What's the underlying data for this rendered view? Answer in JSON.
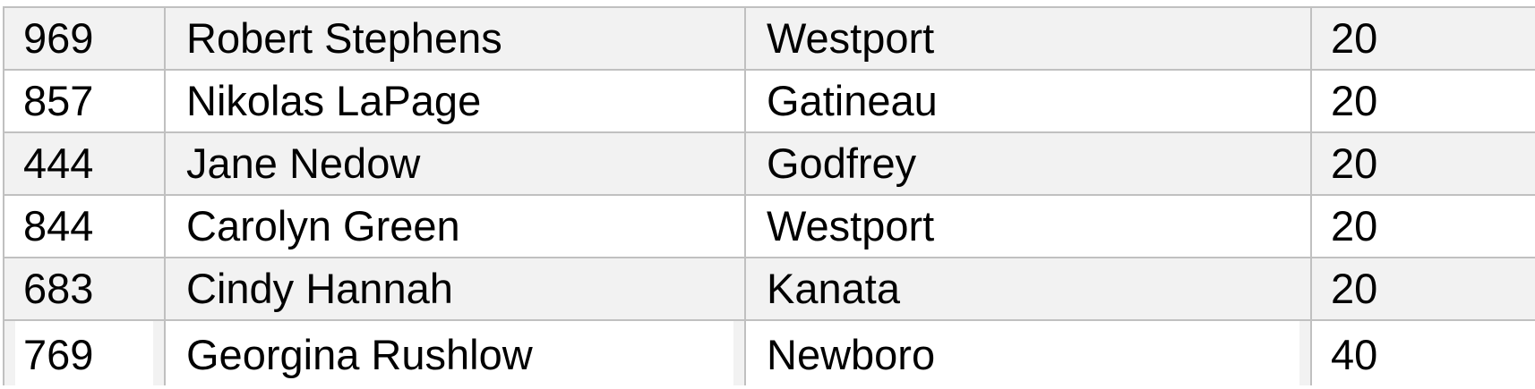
{
  "table": {
    "rows": [
      [
        "969",
        "Robert Stephens",
        "Westport",
        "20"
      ],
      [
        "857",
        "Nikolas LaPage",
        "Gatineau",
        "20"
      ],
      [
        "444",
        "Jane Nedow",
        "Godfrey",
        "20"
      ],
      [
        "844",
        "Carolyn Green",
        "Westport",
        "20"
      ],
      [
        "683",
        "Cindy Hannah",
        "Kanata",
        "20"
      ],
      [
        "769",
        "Georgina Rushlow",
        "Newboro",
        "40"
      ]
    ],
    "colors": {
      "border": "#c0c0c0",
      "band": "#f2f2f2"
    }
  }
}
